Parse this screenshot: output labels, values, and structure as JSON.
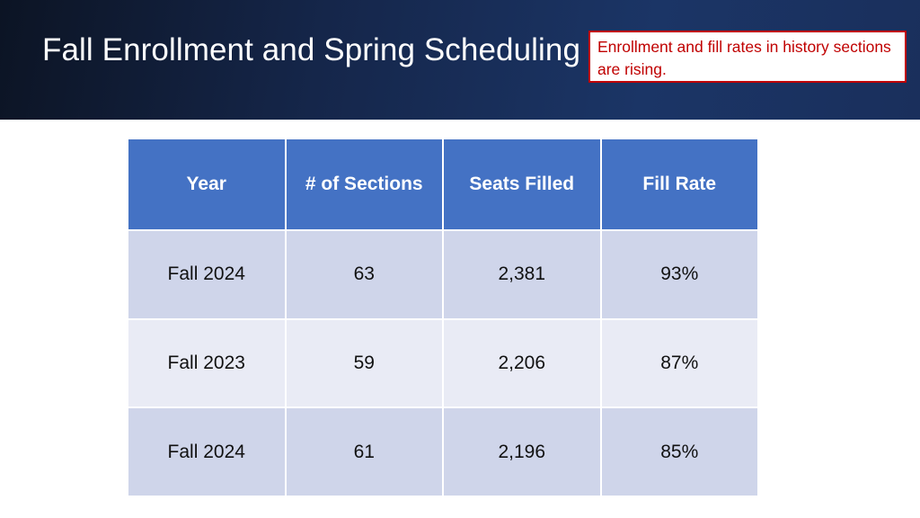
{
  "slide": {
    "title": "Fall Enrollment and Spring Scheduling",
    "callout": "Enrollment and fill rates in history sections are rising."
  },
  "table": {
    "headers": [
      "Year",
      "# of Sections",
      "Seats Filled",
      "Fill Rate"
    ],
    "rows": [
      [
        "Fall 2024",
        "63",
        "2,381",
        "93%"
      ],
      [
        "Fall 2023",
        "59",
        "2,206",
        "87%"
      ],
      [
        "Fall 2024",
        "61",
        "2,196",
        "85%"
      ]
    ]
  },
  "colors": {
    "header_band": "#1b3566",
    "table_header": "#4472c4",
    "row_band_dark": "#cfd5ea",
    "row_band_light": "#e9ebf5",
    "callout_accent": "#c00000"
  }
}
